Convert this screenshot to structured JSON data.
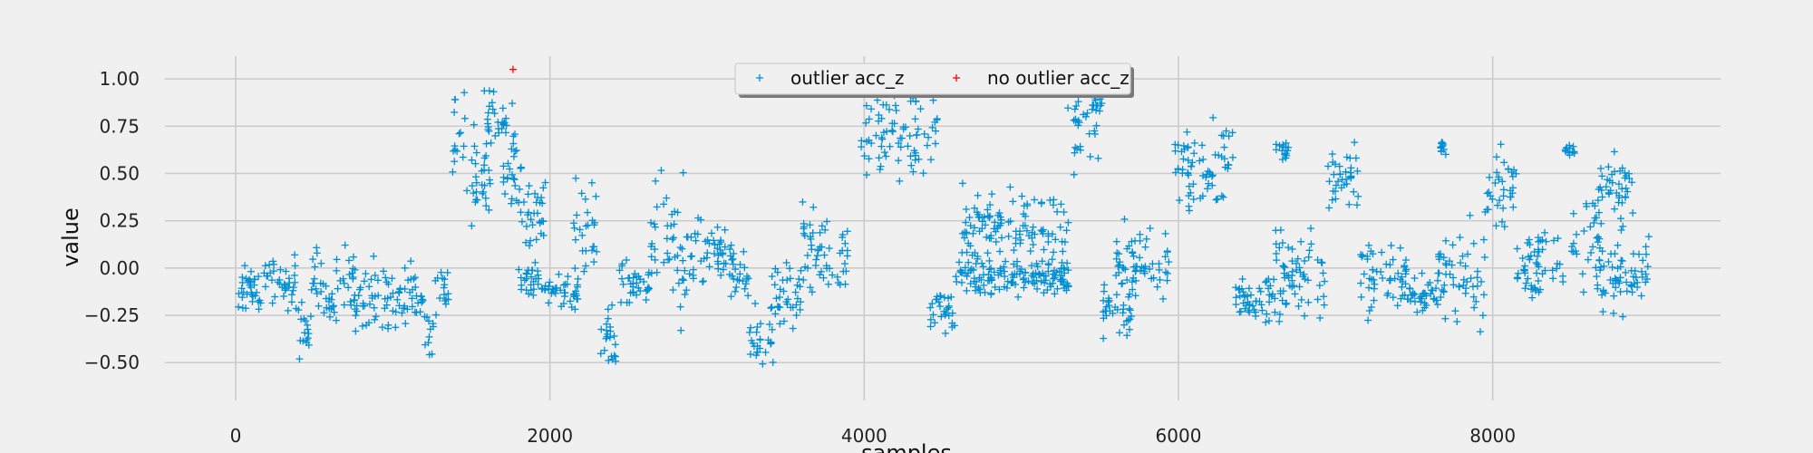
{
  "chart_data": {
    "type": "scatter",
    "title": "",
    "xlabel": "samples",
    "ylabel": "value",
    "xlim": [
      -450,
      9450
    ],
    "ylim": [
      -0.7,
      1.12
    ],
    "xticks": [
      0,
      2000,
      4000,
      6000,
      8000
    ],
    "xtick_labels": [
      "0",
      "2000",
      "4000",
      "6000",
      "8000"
    ],
    "yticks": [
      -0.5,
      -0.25,
      0.0,
      0.25,
      0.5,
      0.75,
      1.0
    ],
    "ytick_labels": [
      "−0.50",
      "−0.25",
      "0.00",
      "0.25",
      "0.50",
      "0.75",
      "1.00"
    ],
    "grid": true,
    "legend_position": "top-center",
    "marker": "+",
    "series": [
      {
        "name": "outlier acc_z",
        "color": "#008fd5",
        "segments": [
          {
            "x": [
              0,
              180
            ],
            "center": -0.12,
            "spread": 0.08
          },
          {
            "x": [
              180,
              380
            ],
            "center": -0.08,
            "spread": 0.09
          },
          {
            "x": [
              380,
              480
            ],
            "center": -0.28,
            "spread": 0.12
          },
          {
            "x": [
              480,
              560
            ],
            "center": -0.05,
            "spread": 0.1
          },
          {
            "x": [
              560,
              640
            ],
            "center": -0.2,
            "spread": 0.1
          },
          {
            "x": [
              640,
              760
            ],
            "center": -0.1,
            "spread": 0.13
          },
          {
            "x": [
              760,
              860
            ],
            "center": -0.15,
            "spread": 0.12
          },
          {
            "x": [
              860,
              980
            ],
            "center": -0.12,
            "spread": 0.12
          },
          {
            "x": [
              980,
              1080
            ],
            "center": -0.18,
            "spread": 0.12
          },
          {
            "x": [
              1080,
              1200
            ],
            "center": -0.15,
            "spread": 0.12
          },
          {
            "x": [
              1200,
              1260
            ],
            "center": -0.35,
            "spread": 0.1
          },
          {
            "x": [
              1270,
              1360
            ],
            "center": -0.1,
            "spread": 0.09
          },
          {
            "x": [
              1380,
              1460
            ],
            "center": 0.75,
            "spread": 0.22
          },
          {
            "x": [
              1460,
              1620
            ],
            "center": 0.45,
            "spread": 0.16
          },
          {
            "x": [
              1580,
              1780
            ],
            "center": 0.75,
            "spread": 0.15
          },
          {
            "x": [
              1700,
              1820
            ],
            "center": 0.5,
            "spread": 0.18
          },
          {
            "x": [
              1820,
              1980
            ],
            "center": 0.28,
            "spread": 0.13
          },
          {
            "x": [
              1800,
              1950
            ],
            "center": -0.05,
            "spread": 0.06
          },
          {
            "x": [
              1950,
              2180
            ],
            "center": -0.13,
            "spread": 0.06
          },
          {
            "x": [
              2150,
              2300
            ],
            "center": 0.2,
            "spread": 0.18
          },
          {
            "x": [
              2300,
              2420
            ],
            "center": -0.4,
            "spread": 0.12
          },
          {
            "x": [
              2440,
              2640
            ],
            "center": -0.1,
            "spread": 0.08
          },
          {
            "x": [
              2640,
              2800
            ],
            "center": 0.12,
            "spread": 0.22
          },
          {
            "x": [
              2800,
              2920
            ],
            "center": 0.05,
            "spread": 0.25
          },
          {
            "x": [
              2900,
              3120
            ],
            "center": 0.12,
            "spread": 0.14
          },
          {
            "x": [
              3120,
              3270
            ],
            "center": -0.02,
            "spread": 0.1
          },
          {
            "x": [
              3270,
              3420
            ],
            "center": -0.38,
            "spread": 0.12
          },
          {
            "x": [
              3400,
              3600
            ],
            "center": -0.15,
            "spread": 0.1
          },
          {
            "x": [
              3600,
              3900
            ],
            "center": 0.08,
            "spread": 0.15
          },
          {
            "x": [
              3980,
              4480
            ],
            "center": 0.75,
            "spread": 0.17
          },
          {
            "x": [
              4420,
              4580
            ],
            "center": -0.2,
            "spread": 0.1
          },
          {
            "x": [
              4580,
              5300
            ],
            "center": -0.05,
            "spread": 0.07
          },
          {
            "x": [
              4620,
              5300
            ],
            "center": 0.2,
            "spread": 0.15
          },
          {
            "x": [
              5280,
              5520
            ],
            "center": 0.78,
            "spread": 0.15
          },
          {
            "x": [
              5520,
              5700
            ],
            "center": -0.2,
            "spread": 0.1
          },
          {
            "x": [
              5600,
              5940
            ],
            "center": 0.0,
            "spread": 0.14
          },
          {
            "x": [
              5970,
              6350
            ],
            "center": 0.55,
            "spread": 0.14
          },
          {
            "x": [
              6350,
              6620
            ],
            "center": -0.15,
            "spread": 0.08
          },
          {
            "x": [
              6620,
              6700
            ],
            "center": 0.63,
            "spread": 0.04
          },
          {
            "x": [
              6600,
              6950
            ],
            "center": -0.05,
            "spread": 0.18
          },
          {
            "x": [
              6950,
              7150
            ],
            "center": 0.45,
            "spread": 0.12
          },
          {
            "x": [
              7150,
              7450
            ],
            "center": -0.05,
            "spread": 0.12
          },
          {
            "x": [
              7450,
              7650
            ],
            "center": -0.15,
            "spread": 0.06
          },
          {
            "x": [
              7650,
              7720
            ],
            "center": 0.63,
            "spread": 0.03
          },
          {
            "x": [
              7650,
              7950
            ],
            "center": -0.05,
            "spread": 0.16
          },
          {
            "x": [
              7950,
              8150
            ],
            "center": 0.45,
            "spread": 0.14
          },
          {
            "x": [
              8150,
              8450
            ],
            "center": 0.0,
            "spread": 0.13
          },
          {
            "x": [
              8450,
              8520
            ],
            "center": 0.63,
            "spread": 0.03
          },
          {
            "x": [
              8500,
              8700
            ],
            "center": 0.1,
            "spread": 0.2
          },
          {
            "x": [
              8650,
              8900
            ],
            "center": 0.42,
            "spread": 0.12
          },
          {
            "x": [
              8700,
              9000
            ],
            "center": -0.05,
            "spread": 0.13
          }
        ]
      },
      {
        "name": "no outlier acc_z",
        "color": "#ff0000",
        "points": [
          {
            "x": 1765,
            "y": 1.05
          }
        ]
      }
    ]
  }
}
